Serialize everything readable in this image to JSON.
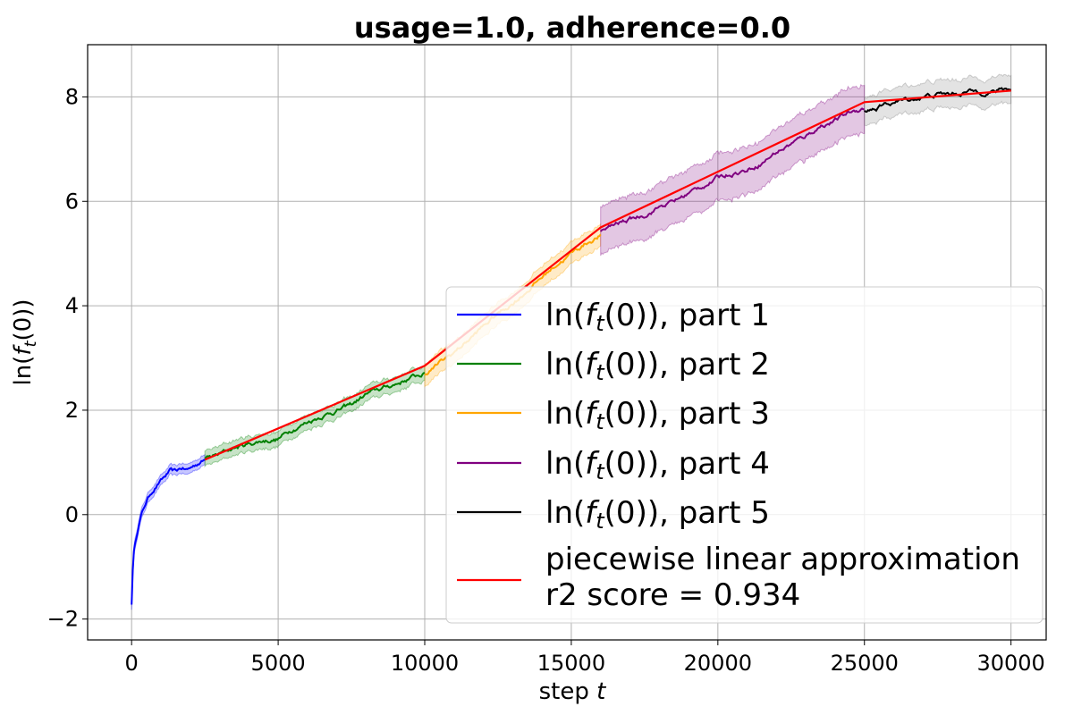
{
  "chart_data": {
    "type": "line",
    "title": "usage=1.0, adherence=0.0",
    "xlabel": "step t",
    "ylabel": "ln(f_t(0))",
    "xlim": [
      -1500,
      31200
    ],
    "ylim": [
      -2.4,
      9.0
    ],
    "x_ticks": [
      0,
      5000,
      10000,
      15000,
      20000,
      25000,
      30000
    ],
    "x_tick_labels": [
      "0",
      "5000",
      "10000",
      "15000",
      "20000",
      "25000",
      "30000"
    ],
    "y_ticks": [
      -2,
      0,
      2,
      4,
      6,
      8
    ],
    "y_tick_labels": [
      "−2",
      "0",
      "2",
      "4",
      "6",
      "8"
    ],
    "grid": true,
    "legend_position": "lower-right",
    "series": [
      {
        "name": "ln(f_t(0)), part 1",
        "color": "#0000ff",
        "band_color": "#0000ff",
        "x": [
          0,
          50,
          100,
          200,
          300,
          400,
          500,
          700,
          900,
          1100,
          1300,
          1500,
          1700,
          1900,
          2100,
          2300,
          2500
        ],
        "y": [
          -1.7,
          -0.9,
          -0.6,
          -0.3,
          -0.05,
          0.1,
          0.25,
          0.45,
          0.6,
          0.7,
          0.82,
          0.8,
          0.88,
          0.85,
          0.92,
          1.0,
          1.05
        ],
        "band": 0.1
      },
      {
        "name": "ln(f_t(0)), part 2",
        "color": "#008000",
        "band_color": "#008000",
        "x": [
          2500,
          3000,
          3500,
          4000,
          4500,
          5000,
          5500,
          6000,
          6500,
          7000,
          7500,
          8000,
          8500,
          9000,
          9500,
          10000
        ],
        "y": [
          1.05,
          1.15,
          1.28,
          1.35,
          1.42,
          1.45,
          1.65,
          1.78,
          1.9,
          2.0,
          2.1,
          2.3,
          2.4,
          2.5,
          2.62,
          2.7
        ],
        "band": 0.15
      },
      {
        "name": "ln(f_t(0)), part 3",
        "color": "#ffa500",
        "band_color": "#ffa500",
        "x": [
          10000,
          10500,
          11000,
          11500,
          12000,
          12500,
          13000,
          13500,
          14000,
          14500,
          15000,
          15500,
          16000
        ],
        "y": [
          2.7,
          2.9,
          3.1,
          3.35,
          3.6,
          3.85,
          4.05,
          4.3,
          4.55,
          4.8,
          5.0,
          5.2,
          5.35
        ],
        "band": 0.22
      },
      {
        "name": "ln(f_t(0)), part 4",
        "color": "#800080",
        "band_color": "#800080",
        "x": [
          16000,
          16500,
          17000,
          17500,
          18000,
          18500,
          19000,
          19500,
          20000,
          20500,
          21000,
          21500,
          22000,
          22500,
          23000,
          23500,
          24000,
          24500,
          25000
        ],
        "y": [
          5.4,
          5.55,
          5.65,
          5.75,
          5.9,
          6.0,
          6.15,
          6.3,
          6.45,
          6.55,
          6.6,
          6.75,
          6.95,
          7.1,
          7.25,
          7.45,
          7.55,
          7.7,
          7.8
        ],
        "band": 0.48
      },
      {
        "name": "ln(f_t(0)), part 5",
        "color": "#000000",
        "band_color": "#808080",
        "x": [
          25000,
          25500,
          26000,
          26500,
          27000,
          27500,
          28000,
          28500,
          29000,
          29500,
          30000
        ],
        "y": [
          7.75,
          7.8,
          7.9,
          7.95,
          8.0,
          8.05,
          8.05,
          8.1,
          8.1,
          8.12,
          8.15
        ],
        "band": 0.28
      },
      {
        "name": "piecewise linear approximation\nr2 score = 0.934",
        "color": "#ff0000",
        "x": [
          2500,
          10000,
          16000,
          25000,
          30000
        ],
        "y": [
          1.05,
          2.85,
          5.5,
          7.9,
          8.12
        ]
      }
    ]
  }
}
